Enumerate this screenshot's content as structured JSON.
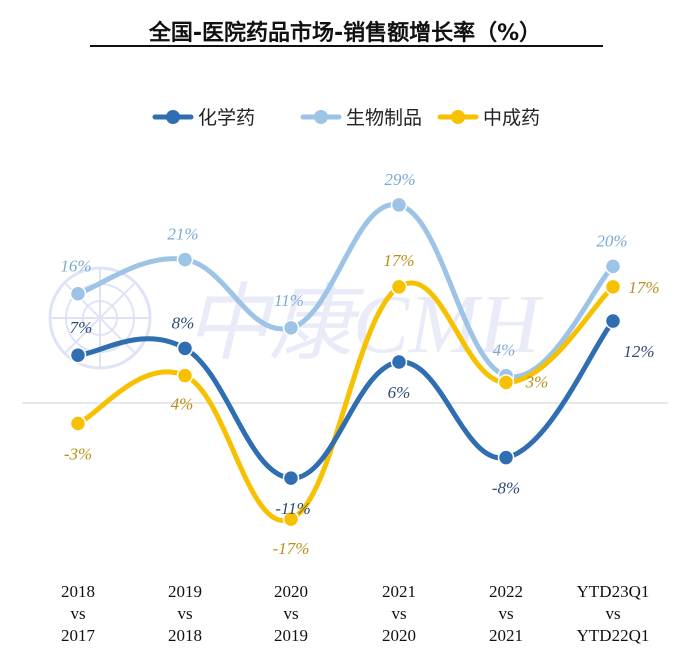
{
  "chart_data": {
    "type": "line",
    "title": "全国-医院药品市场-销售额增长率（%）",
    "categories": [
      [
        "2018",
        "vs",
        "2017"
      ],
      [
        "2019",
        "vs",
        "2018"
      ],
      [
        "2020",
        "vs",
        "2019"
      ],
      [
        "2021",
        "vs",
        "2020"
      ],
      [
        "2022",
        "vs",
        "2021"
      ],
      [
        "YTD23Q1",
        "vs",
        "YTD22Q1"
      ]
    ],
    "unit": "%",
    "legend_position": "top",
    "grid": false,
    "ylim": [
      -22,
      33
    ],
    "series": [
      {
        "name": "化学药",
        "values": [
          7,
          8,
          -11,
          6,
          -8,
          12
        ],
        "color": "#2f6eb0"
      },
      {
        "name": "生物制品",
        "values": [
          16,
          21,
          11,
          29,
          4,
          20
        ],
        "color": "#9dc3e6"
      },
      {
        "name": "中成药",
        "values": [
          -3,
          4,
          -17,
          17,
          3,
          17
        ],
        "color": "#f7c100"
      }
    ],
    "labels": [
      [
        "7%",
        "8%",
        "-11%",
        "6%",
        "-8%",
        "12%"
      ],
      [
        "16%",
        "21%",
        "11%",
        "29%",
        "4%",
        "20%"
      ],
      [
        "-3%",
        "4%",
        "-17%",
        "17%",
        "3%",
        "17%"
      ]
    ],
    "label_colors": [
      "#2d4b74",
      "#7ea8d2",
      "#b8911a"
    ]
  },
  "watermark": {
    "text": "中康CMH",
    "color": "#d8dcf3"
  }
}
